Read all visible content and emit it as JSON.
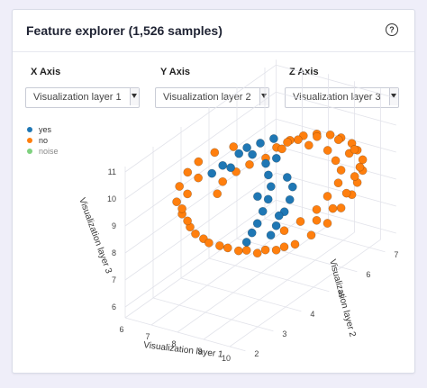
{
  "card": {
    "title": "Feature explorer (1,526 samples)",
    "help_icon": "question-circle-icon"
  },
  "axes": [
    {
      "label": "X Axis",
      "selected": "Visualization layer 1"
    },
    {
      "label": "Y Axis",
      "selected": "Visualization layer 2"
    },
    {
      "label": "Z Axis",
      "selected": "Visualization layer 3"
    }
  ],
  "chart_data": {
    "type": "scatter",
    "legend": [
      {
        "name": "yes",
        "color": "#1f77b4"
      },
      {
        "name": "no",
        "color": "#ff7f0e"
      },
      {
        "name": "noise",
        "color": "#7fd17f"
      }
    ],
    "x_axis": {
      "title": "Visualization layer 1",
      "ticks": [
        "6",
        "7",
        "8",
        "9",
        "10"
      ]
    },
    "y_axis": {
      "title": "Visualization layer 2",
      "ticks": [
        "2",
        "3",
        "4",
        "5",
        "6",
        "7"
      ]
    },
    "z_axis": {
      "title": "Visualization layer 3",
      "ticks": [
        "6",
        "7",
        "8",
        "9",
        "10",
        "11"
      ]
    },
    "series": [
      {
        "name": "no",
        "color": "#ff7f0e",
        "points": [
          [
            8.6,
            4.6,
            10.3
          ],
          [
            8.8,
            4.8,
            10.6
          ],
          [
            9.1,
            5.0,
            10.8
          ],
          [
            9.4,
            5.2,
            10.9
          ],
          [
            9.7,
            5.4,
            10.9
          ],
          [
            10.0,
            5.6,
            10.8
          ],
          [
            10.2,
            5.8,
            10.6
          ],
          [
            10.4,
            6.0,
            10.3
          ],
          [
            10.5,
            6.1,
            10.0
          ],
          [
            10.6,
            6.2,
            9.6
          ],
          [
            10.6,
            6.2,
            9.2
          ],
          [
            10.5,
            6.1,
            8.8
          ],
          [
            10.4,
            6.0,
            8.4
          ],
          [
            10.2,
            5.8,
            8.0
          ],
          [
            10.0,
            5.5,
            7.6
          ],
          [
            9.7,
            5.2,
            7.3
          ],
          [
            9.4,
            4.9,
            7.1
          ],
          [
            9.0,
            4.6,
            7.0
          ],
          [
            8.6,
            4.3,
            7.0
          ],
          [
            8.2,
            4.0,
            7.2
          ],
          [
            7.8,
            3.7,
            7.5
          ],
          [
            7.5,
            3.4,
            7.9
          ],
          [
            7.2,
            3.2,
            8.4
          ],
          [
            7.0,
            3.1,
            8.9
          ],
          [
            6.9,
            3.0,
            9.4
          ],
          [
            6.9,
            3.1,
            9.9
          ],
          [
            7.0,
            3.3,
            10.3
          ],
          [
            7.2,
            3.5,
            10.6
          ],
          [
            7.5,
            3.8,
            10.8
          ],
          [
            7.9,
            4.1,
            10.9
          ],
          [
            9.0,
            5.0,
            10.7
          ],
          [
            9.5,
            5.3,
            10.5
          ],
          [
            9.9,
            5.6,
            10.2
          ],
          [
            10.1,
            5.7,
            9.8
          ],
          [
            10.2,
            5.8,
            9.4
          ],
          [
            10.2,
            5.7,
            9.0
          ],
          [
            10.0,
            5.5,
            8.6
          ],
          [
            9.8,
            5.3,
            8.2
          ],
          [
            9.5,
            5.0,
            7.9
          ],
          [
            9.2,
            4.7,
            7.7
          ],
          [
            10.3,
            6.0,
            9.9
          ],
          [
            10.4,
            6.1,
            9.0
          ],
          [
            10.3,
            5.9,
            8.5
          ],
          [
            10.1,
            5.6,
            8.1
          ],
          [
            9.8,
            5.3,
            7.8
          ],
          [
            7.3,
            3.4,
            10.1
          ],
          [
            7.1,
            3.2,
            9.6
          ],
          [
            7.0,
            3.1,
            9.1
          ],
          [
            7.1,
            3.2,
            8.6
          ],
          [
            7.3,
            3.3,
            8.1
          ],
          [
            7.6,
            3.5,
            7.7
          ],
          [
            8.0,
            3.8,
            7.4
          ],
          [
            8.4,
            4.1,
            7.2
          ],
          [
            8.8,
            4.4,
            7.1
          ],
          [
            9.2,
            4.7,
            7.1
          ],
          [
            8.3,
            4.3,
            10.2
          ],
          [
            8.0,
            4.1,
            10.0
          ],
          [
            7.7,
            3.9,
            9.7
          ],
          [
            7.6,
            3.8,
            9.3
          ],
          [
            10.6,
            6.1,
            9.4
          ],
          [
            10.5,
            6.0,
            10.1
          ],
          [
            10.1,
            5.8,
            10.5
          ],
          [
            9.6,
            5.5,
            10.7
          ],
          [
            9.3,
            5.1,
            10.8
          ],
          [
            8.9,
            4.9,
            10.5
          ]
        ]
      },
      {
        "name": "yes",
        "color": "#1f77b4",
        "points": [
          [
            8.0,
            4.2,
            10.6
          ],
          [
            8.2,
            4.3,
            10.8
          ],
          [
            8.5,
            4.5,
            10.9
          ],
          [
            8.8,
            4.7,
            11.0
          ],
          [
            8.3,
            4.4,
            10.5
          ],
          [
            8.6,
            4.6,
            10.1
          ],
          [
            8.7,
            4.6,
            9.7
          ],
          [
            8.8,
            4.6,
            9.3
          ],
          [
            8.8,
            4.5,
            8.9
          ],
          [
            8.7,
            4.4,
            8.5
          ],
          [
            8.6,
            4.3,
            8.1
          ],
          [
            8.5,
            4.2,
            7.8
          ],
          [
            8.4,
            4.1,
            7.5
          ],
          [
            9.1,
            4.9,
            9.5
          ],
          [
            9.2,
            5.0,
            9.1
          ],
          [
            9.2,
            4.9,
            8.7
          ],
          [
            9.1,
            4.8,
            8.3
          ],
          [
            9.0,
            4.6,
            7.9
          ],
          [
            8.9,
            4.5,
            7.6
          ],
          [
            7.9,
            4.0,
            10.2
          ],
          [
            7.7,
            3.9,
            10.3
          ],
          [
            7.5,
            3.7,
            10.1
          ],
          [
            8.9,
            4.7,
            10.3
          ],
          [
            8.5,
            4.4,
            9.0
          ],
          [
            9.0,
            4.7,
            8.2
          ]
        ]
      }
    ]
  }
}
